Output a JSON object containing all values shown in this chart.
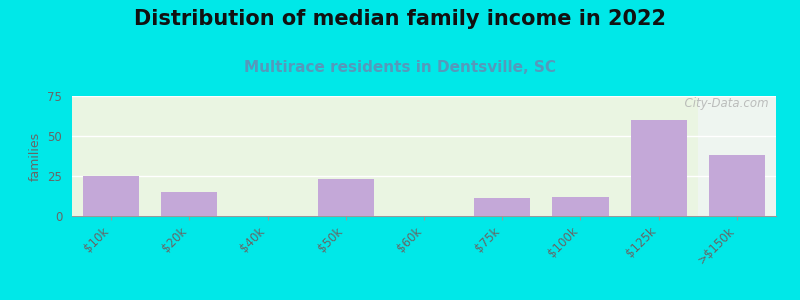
{
  "title": "Distribution of median family income in 2022",
  "subtitle": "Multirace residents in Dentsville, SC",
  "categories": [
    "$10k",
    "$20k",
    "$40k",
    "$50k",
    "$60k",
    "$75k",
    "$100k",
    "$125k",
    ">$150k"
  ],
  "values": [
    25,
    15,
    0,
    23,
    0,
    11,
    12,
    60,
    38
  ],
  "bar_color": "#c4a8d8",
  "ylabel": "families",
  "ylim": [
    0,
    75
  ],
  "yticks": [
    0,
    25,
    50,
    75
  ],
  "background_outer": "#00e8e8",
  "plot_bg_left": "#eaf5e2",
  "plot_bg_right": "#eef5f0",
  "title_fontsize": 15,
  "subtitle_fontsize": 11,
  "subtitle_color": "#5599bb",
  "watermark": "  City-Data.com"
}
